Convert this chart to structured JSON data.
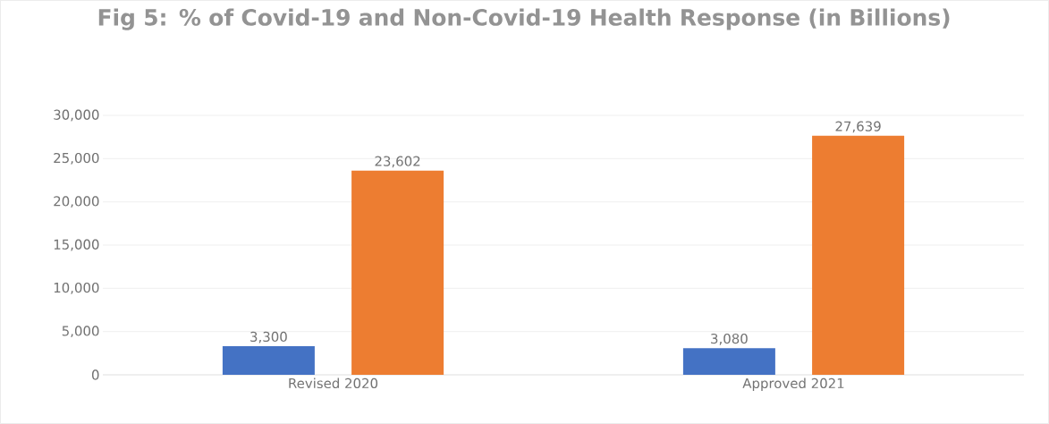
{
  "chart_data": {
    "type": "bar",
    "title": "Fig 5: % of Covid-19 and Non-Covid-19 Health  Response (in Billions)",
    "categories": [
      "Revised 2020",
      "Approved 2021"
    ],
    "series": [
      {
        "color": "#4472c4",
        "values": [
          3300,
          3080
        ],
        "value_labels": [
          "3,300",
          "3,080"
        ]
      },
      {
        "color": "#ed7d31",
        "values": [
          23602,
          27639
        ],
        "value_labels": [
          "23,602",
          "27,639"
        ]
      }
    ],
    "ylim": [
      0,
      30000
    ],
    "yticks": [
      {
        "value": 0,
        "label": "0"
      },
      {
        "value": 5000,
        "label": "5,000"
      },
      {
        "value": 10000,
        "label": "10,000"
      },
      {
        "value": 15000,
        "label": "15,000"
      },
      {
        "value": 20000,
        "label": "20,000"
      },
      {
        "value": 25000,
        "label": "25,000"
      },
      {
        "value": 30000,
        "label": "30,000"
      }
    ],
    "grid": "y"
  }
}
